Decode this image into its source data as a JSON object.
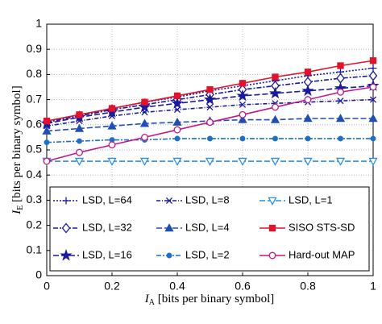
{
  "chart_data": {
    "type": "line",
    "xlabel": {
      "symbol": "I",
      "sub": "A",
      "text": " [bits per binary symbol]"
    },
    "ylabel": {
      "symbol": "I",
      "sub": "E",
      "text": " [bits per binary symbol]"
    },
    "x": [
      0,
      0.1,
      0.2,
      0.3,
      0.4,
      0.5,
      0.6,
      0.7,
      0.8,
      0.9,
      1
    ],
    "xlim": [
      0,
      1
    ],
    "xticks": [
      0,
      0.2,
      0.4,
      0.6,
      0.8,
      1
    ],
    "ylim": [
      0,
      1
    ],
    "yticks": [
      0,
      0.1,
      0.2,
      0.3,
      0.4,
      0.5,
      0.6,
      0.7,
      0.8,
      0.9,
      1
    ],
    "grid": true,
    "series": [
      {
        "name": "LSD, L=64",
        "color": "#1a1a9c",
        "dash": "2,2",
        "marker": "plus",
        "marker_fill": false,
        "values": [
          0.615,
          0.64,
          0.665,
          0.69,
          0.71,
          0.735,
          0.755,
          0.775,
          0.795,
          0.81,
          0.825
        ]
      },
      {
        "name": "LSD, L=32",
        "color": "#1a1a9c",
        "dash": "6,2,2,2",
        "marker": "diamond",
        "marker_fill": false,
        "values": [
          0.61,
          0.635,
          0.66,
          0.68,
          0.7,
          0.72,
          0.74,
          0.755,
          0.77,
          0.785,
          0.795
        ]
      },
      {
        "name": "LSD, L=16",
        "color": "#1a1a9c",
        "dash": "7,3",
        "marker": "star",
        "marker_fill": true,
        "values": [
          0.605,
          0.63,
          0.65,
          0.67,
          0.685,
          0.7,
          0.715,
          0.725,
          0.735,
          0.745,
          0.755
        ]
      },
      {
        "name": "LSD, L=8",
        "color": "#1a1a9c",
        "dash": "5,2,1,2",
        "marker": "x",
        "marker_fill": false,
        "values": [
          0.595,
          0.615,
          0.635,
          0.65,
          0.66,
          0.67,
          0.68,
          0.685,
          0.69,
          0.695,
          0.7
        ]
      },
      {
        "name": "LSD, L=4",
        "color": "#1f4fb4",
        "dash": "7,3",
        "marker": "triangle",
        "marker_fill": true,
        "values": [
          0.575,
          0.585,
          0.595,
          0.605,
          0.61,
          0.615,
          0.62,
          0.62,
          0.625,
          0.625,
          0.625
        ]
      },
      {
        "name": "LSD, L=2",
        "color": "#1f6fc8",
        "dash": "6,2,2,2",
        "marker": "circle",
        "marker_fill": true,
        "values": [
          0.53,
          0.535,
          0.54,
          0.54,
          0.545,
          0.545,
          0.545,
          0.545,
          0.545,
          0.545,
          0.545
        ]
      },
      {
        "name": "LSD, L=1",
        "color": "#2f8fe0",
        "dash": "7,3",
        "marker": "triangle-down",
        "marker_fill": false,
        "values": [
          0.455,
          0.455,
          0.455,
          0.455,
          0.455,
          0.455,
          0.455,
          0.455,
          0.455,
          0.455,
          0.455
        ]
      },
      {
        "name": "SISO STS-SD",
        "color": "#e3122b",
        "dash": "none",
        "marker": "square",
        "marker_fill": true,
        "values": [
          0.615,
          0.64,
          0.665,
          0.69,
          0.715,
          0.74,
          0.765,
          0.79,
          0.81,
          0.835,
          0.855
        ]
      },
      {
        "name": "Hard-out MAP",
        "color": "#c0188a",
        "dash": "none",
        "marker": "circle",
        "marker_fill": false,
        "values": [
          0.455,
          0.49,
          0.52,
          0.55,
          0.58,
          0.61,
          0.64,
          0.67,
          0.7,
          0.73,
          0.75
        ]
      }
    ]
  }
}
